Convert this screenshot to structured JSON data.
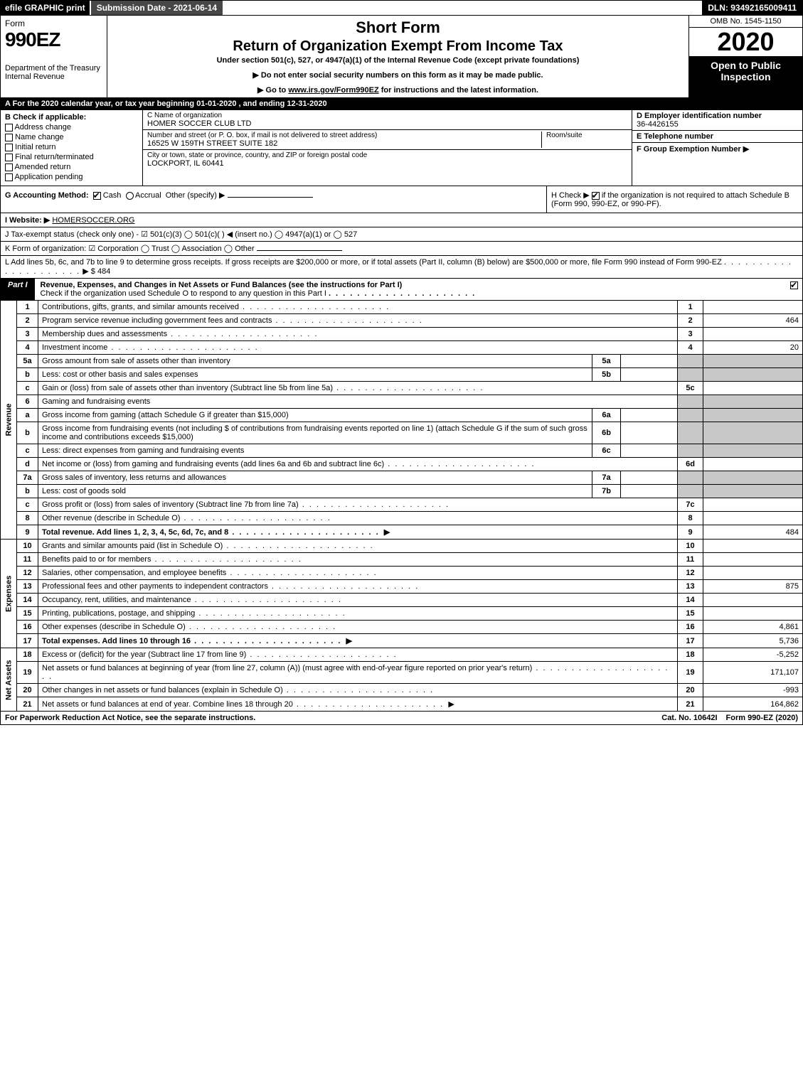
{
  "topbar": {
    "efile": "efile GRAPHIC print",
    "submission": "Submission Date - 2021-06-14",
    "dln": "DLN: 93492165009411"
  },
  "header": {
    "form_word": "Form",
    "form_num": "990EZ",
    "dept": "Department of the Treasury\nInternal Revenue",
    "shortform": "Short Form",
    "return_title": "Return of Organization Exempt From Income Tax",
    "undersec": "Under section 501(c), 527, or 4947(a)(1) of the Internal Revenue Code (except private foundations)",
    "note1": "▶ Do not enter social security numbers on this form as it may be made public.",
    "note2_pre": "▶ Go to ",
    "note2_link": "www.irs.gov/Form990EZ",
    "note2_post": " for instructions and the latest information.",
    "omb": "OMB No. 1545-1150",
    "year": "2020",
    "open": "Open to Public Inspection"
  },
  "row_a": "A For the 2020 calendar year, or tax year beginning 01-01-2020 , and ending 12-31-2020",
  "boxB": {
    "label": "B  Check if applicable:",
    "opts": [
      "Address change",
      "Name change",
      "Initial return",
      "Final return/terminated",
      "Amended return",
      "Application pending"
    ]
  },
  "boxC": {
    "name_lab": "C Name of organization",
    "name": "HOMER SOCCER CLUB LTD",
    "addr_lab": "Number and street (or P. O. box, if mail is not delivered to street address)",
    "addr": "16525 W 159TH STREET SUITE 182",
    "room_lab": "Room/suite",
    "city_lab": "City or town, state or province, country, and ZIP or foreign postal code",
    "city": "LOCKPORT, IL  60441"
  },
  "boxDEF": {
    "d_lab": "D Employer identification number",
    "d_val": "36-4426155",
    "e_lab": "E Telephone number",
    "f_lab": "F Group Exemption Number  ▶"
  },
  "rowG": {
    "g": "G Accounting Method:",
    "cash": "Cash",
    "accrual": "Accrual",
    "other": "Other (specify) ▶",
    "h_pre": "H  Check ▶",
    "h_post": " if the organization is not required to attach Schedule B (Form 990, 990-EZ, or 990-PF)."
  },
  "rowI": {
    "label": "I Website: ▶",
    "site": "HOMERSOCCER.ORG"
  },
  "rowJ": "J Tax-exempt status (check only one) -   ☑ 501(c)(3)  ◯ 501(c)(  ) ◀ (insert no.)  ◯ 4947(a)(1) or  ◯ 527",
  "rowK": "K Form of organization:   ☑ Corporation   ◯ Trust   ◯ Association   ◯ Other",
  "rowL": {
    "text": "L Add lines 5b, 6c, and 7b to line 9 to determine gross receipts. If gross receipts are $200,000 or more, or if total assets (Part II, column (B) below) are $500,000 or more, file Form 990 instead of Form 990-EZ",
    "amt_label": "▶ $ ",
    "amt": "484"
  },
  "part1": {
    "label": "Part I",
    "title": "Revenue, Expenses, and Changes in Net Assets or Fund Balances (see the instructions for Part I)",
    "sub": "Check if the organization used Schedule O to respond to any question in this Part I"
  },
  "sections": {
    "revenue": "Revenue",
    "expenses": "Expenses",
    "netassets": "Net Assets"
  },
  "lines": [
    {
      "sec": "rev",
      "n": "1",
      "t": "Contributions, gifts, grants, and similar amounts received",
      "num": "1",
      "amt": ""
    },
    {
      "sec": "rev",
      "n": "2",
      "t": "Program service revenue including government fees and contracts",
      "num": "2",
      "amt": "464"
    },
    {
      "sec": "rev",
      "n": "3",
      "t": "Membership dues and assessments",
      "num": "3",
      "amt": ""
    },
    {
      "sec": "rev",
      "n": "4",
      "t": "Investment income",
      "num": "4",
      "amt": "20"
    },
    {
      "sec": "rev",
      "n": "5a",
      "t": "Gross amount from sale of assets other than inventory",
      "sub": "5a",
      "subamt": "",
      "grey": true
    },
    {
      "sec": "rev",
      "n": "b",
      "t": "Less: cost or other basis and sales expenses",
      "sub": "5b",
      "subamt": "",
      "grey": true
    },
    {
      "sec": "rev",
      "n": "c",
      "t": "Gain or (loss) from sale of assets other than inventory (Subtract line 5b from line 5a)",
      "num": "5c",
      "amt": ""
    },
    {
      "sec": "rev",
      "n": "6",
      "t": "Gaming and fundraising events",
      "grey": true,
      "noval": true
    },
    {
      "sec": "rev",
      "n": "a",
      "t": "Gross income from gaming (attach Schedule G if greater than $15,000)",
      "sub": "6a",
      "subamt": "",
      "grey": true
    },
    {
      "sec": "rev",
      "n": "b",
      "t": "Gross income from fundraising events (not including $                of contributions from fundraising events reported on line 1) (attach Schedule G if the sum of such gross income and contributions exceeds $15,000)",
      "sub": "6b",
      "subamt": "",
      "grey": true
    },
    {
      "sec": "rev",
      "n": "c",
      "t": "Less: direct expenses from gaming and fundraising events",
      "sub": "6c",
      "subamt": "",
      "grey": true
    },
    {
      "sec": "rev",
      "n": "d",
      "t": "Net income or (loss) from gaming and fundraising events (add lines 6a and 6b and subtract line 6c)",
      "num": "6d",
      "amt": ""
    },
    {
      "sec": "rev",
      "n": "7a",
      "t": "Gross sales of inventory, less returns and allowances",
      "sub": "7a",
      "subamt": "",
      "grey": true
    },
    {
      "sec": "rev",
      "n": "b",
      "t": "Less: cost of goods sold",
      "sub": "7b",
      "subamt": "",
      "grey": true
    },
    {
      "sec": "rev",
      "n": "c",
      "t": "Gross profit or (loss) from sales of inventory (Subtract line 7b from line 7a)",
      "num": "7c",
      "amt": ""
    },
    {
      "sec": "rev",
      "n": "8",
      "t": "Other revenue (describe in Schedule O)",
      "num": "8",
      "amt": ""
    },
    {
      "sec": "rev",
      "n": "9",
      "t": "Total revenue. Add lines 1, 2, 3, 4, 5c, 6d, 7c, and 8",
      "num": "9",
      "amt": "484",
      "bold": true,
      "arrow": true
    },
    {
      "sec": "exp",
      "n": "10",
      "t": "Grants and similar amounts paid (list in Schedule O)",
      "num": "10",
      "amt": ""
    },
    {
      "sec": "exp",
      "n": "11",
      "t": "Benefits paid to or for members",
      "num": "11",
      "amt": ""
    },
    {
      "sec": "exp",
      "n": "12",
      "t": "Salaries, other compensation, and employee benefits",
      "num": "12",
      "amt": ""
    },
    {
      "sec": "exp",
      "n": "13",
      "t": "Professional fees and other payments to independent contractors",
      "num": "13",
      "amt": "875"
    },
    {
      "sec": "exp",
      "n": "14",
      "t": "Occupancy, rent, utilities, and maintenance",
      "num": "14",
      "amt": ""
    },
    {
      "sec": "exp",
      "n": "15",
      "t": "Printing, publications, postage, and shipping",
      "num": "15",
      "amt": ""
    },
    {
      "sec": "exp",
      "n": "16",
      "t": "Other expenses (describe in Schedule O)",
      "num": "16",
      "amt": "4,861"
    },
    {
      "sec": "exp",
      "n": "17",
      "t": "Total expenses. Add lines 10 through 16",
      "num": "17",
      "amt": "5,736",
      "bold": true,
      "arrow": true
    },
    {
      "sec": "net",
      "n": "18",
      "t": "Excess or (deficit) for the year (Subtract line 17 from line 9)",
      "num": "18",
      "amt": "-5,252"
    },
    {
      "sec": "net",
      "n": "19",
      "t": "Net assets or fund balances at beginning of year (from line 27, column (A)) (must agree with end-of-year figure reported on prior year's return)",
      "num": "19",
      "amt": "171,107"
    },
    {
      "sec": "net",
      "n": "20",
      "t": "Other changes in net assets or fund balances (explain in Schedule O)",
      "num": "20",
      "amt": "-993"
    },
    {
      "sec": "net",
      "n": "21",
      "t": "Net assets or fund balances at end of year. Combine lines 18 through 20",
      "num": "21",
      "amt": "164,862",
      "arrow": true
    }
  ],
  "footer": {
    "left": "For Paperwork Reduction Act Notice, see the separate instructions.",
    "center": "Cat. No. 10642I",
    "right": "Form 990-EZ (2020)"
  },
  "colors": {
    "black": "#000000",
    "white": "#ffffff",
    "grey_topbar": "#474747",
    "grey_cell": "#c8c8c8"
  }
}
